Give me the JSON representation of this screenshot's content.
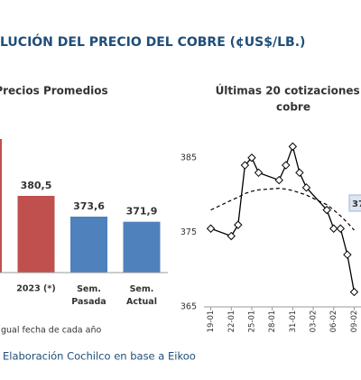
{
  "header": {
    "title": "LUCIÓN DEL PRECIO DEL COBRE (¢US$/LB.)"
  },
  "chart_data": [
    {
      "type": "bar",
      "title": "Precios Promedios",
      "categories": [
        ")",
        "2023 (*)",
        "Sem. Pasada",
        "Sem. Actual"
      ],
      "values": [
        399.4,
        380.5,
        373.6,
        371.9
      ],
      "value_labels": [
        null,
        "380,5",
        "373,6",
        "371,9"
      ],
      "colors": [
        "#c0504d",
        "#c0504d",
        "#4f81bd",
        "#4f81bd"
      ],
      "ylim": [
        355,
        400
      ],
      "footnote": "gual fecha de cada año"
    },
    {
      "type": "line",
      "title": [
        "Últimas 20 cotizaciones d",
        "cobre"
      ],
      "x": [
        "19-01",
        "22-01",
        "23-01",
        "24-01",
        "25-01",
        "26-01",
        "29-01",
        "30-01",
        "31-01",
        "01-02",
        "02-02",
        "05-02",
        "06-02",
        "07-02",
        "08-02",
        "09-02"
      ],
      "series": [
        {
          "color": "#000000",
          "values": [
            375.5,
            374.5,
            376,
            384,
            385,
            383,
            382,
            384,
            386.5,
            383,
            381,
            378,
            375.5,
            375.5,
            372,
            367
          ]
        },
        {
          "color": "#000000",
          "dashed": true,
          "values": [
            378,
            379.3,
            379.7,
            380.2,
            380.5,
            380.7,
            380.9,
            380.8,
            380.6,
            380.3,
            380,
            378.7,
            378,
            377.2,
            376.3,
            375.3
          ]
        }
      ],
      "xlim": [
        "18-01",
        "10-02"
      ],
      "xticks": [
        "19-01",
        "22-01",
        "25-01",
        "28-01",
        "31-01",
        "03-02",
        "06-02",
        "09-02"
      ],
      "ylim": [
        365,
        388
      ],
      "yticks": [
        365,
        375,
        385
      ],
      "annotation": "37"
    }
  ],
  "source": "Elaboración Cochilco en base a Eikoo"
}
